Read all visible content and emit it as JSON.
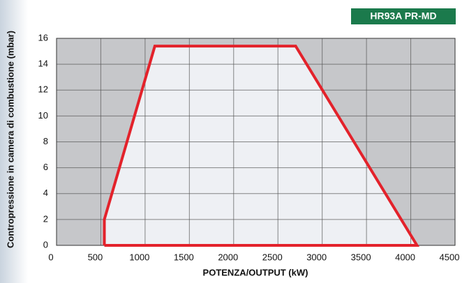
{
  "chart_data": {
    "type": "line",
    "badge": "HR93A PR-MD",
    "xlabel": "POTENZA/OUTPUT (kW)",
    "ylabel": "Contropressione in camera di combustione (mbar)",
    "x": [
      540,
      540,
      1110,
      2700,
      4070,
      540
    ],
    "series": [
      {
        "color": "#e3222b",
        "values": [
          0,
          2,
          15.4,
          15.4,
          0,
          0
        ]
      }
    ],
    "xlim": [
      0,
      4500
    ],
    "xticks": [
      0,
      500,
      1000,
      1500,
      2000,
      2500,
      3000,
      3500,
      4000,
      4500
    ],
    "ylim": [
      0,
      16
    ],
    "yticks": [
      0,
      2,
      4,
      6,
      8,
      10,
      12,
      14,
      16
    ],
    "grid": true
  }
}
